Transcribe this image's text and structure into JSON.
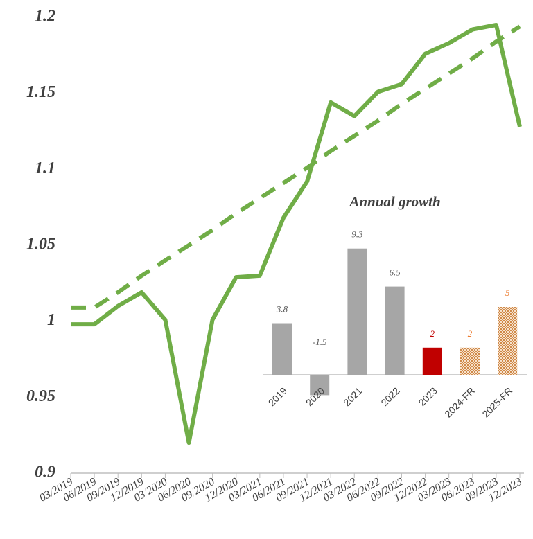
{
  "chart_data": [
    {
      "type": "line",
      "categories": [
        "03/2019",
        "06/2019",
        "09/2019",
        "12/2019",
        "03/2020",
        "06/2020",
        "09/2020",
        "12/2020",
        "03/2021",
        "06/2021",
        "09/2021",
        "12/2021",
        "03/2022",
        "06/2022",
        "09/2022",
        "12/2022",
        "03/2023",
        "06/2023",
        "09/2023",
        "12/2023"
      ],
      "series": [
        {
          "color": "#70ad47",
          "style": "solid",
          "values": [
            0.998,
            0.998,
            1.01,
            1.019,
            1.001,
            0.92,
            1.001,
            1.029,
            1.03,
            1.068,
            1.092,
            1.144,
            1.135,
            1.151,
            1.156,
            1.176,
            1.183,
            1.192,
            1.195,
            1.128
          ]
        },
        {
          "color": "#70ad47",
          "style": "dashed",
          "values": [
            1.009,
            1.009,
            1.019,
            1.03,
            1.04,
            1.05,
            1.06,
            1.071,
            1.081,
            1.091,
            1.101,
            1.112,
            1.122,
            1.132,
            1.143,
            1.153,
            1.163,
            1.173,
            1.184,
            1.194
          ]
        }
      ],
      "ylim": [
        0.9,
        1.2
      ],
      "yticks": [
        0.9,
        0.95,
        1,
        1.05,
        1.1,
        1.15,
        1.2
      ],
      "grid": false
    },
    {
      "type": "bar",
      "title": "Annual growth",
      "categories": [
        "2019",
        "2020",
        "2021",
        "2022",
        "2023",
        "2024-FR",
        "2025-FR"
      ],
      "values": [
        3.8,
        -1.5,
        9.3,
        6.5,
        2,
        2,
        5
      ],
      "colors": [
        "#a6a6a6",
        "#a6a6a6",
        "#a6a6a6",
        "#a6a6a6",
        "#c00000",
        "#e0a070",
        "#e0a070"
      ],
      "bar_styles": [
        "solid",
        "solid",
        "solid",
        "solid",
        "solid",
        "hatched",
        "hatched"
      ],
      "label_colors": [
        "#595959",
        "#595959",
        "#595959",
        "#595959",
        "#c00000",
        "#ed7d31",
        "#ed7d31"
      ]
    }
  ]
}
